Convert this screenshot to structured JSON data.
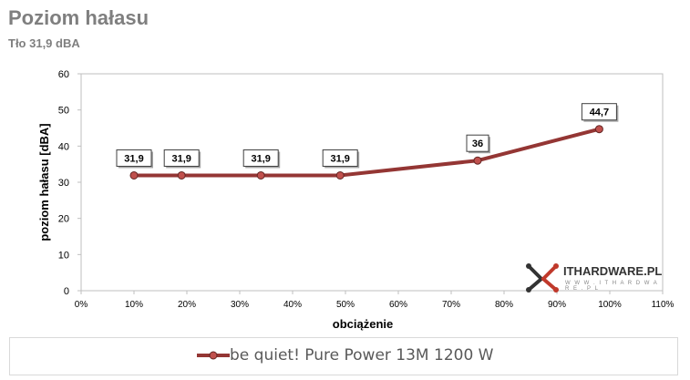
{
  "chart_data": {
    "type": "line",
    "title": "Poziom hałasu",
    "subtitle": "Tło 31,9 dBA",
    "xlabel": "obciążenie",
    "ylabel": "poziom hałasu [dBA]",
    "xlim": [
      0,
      110
    ],
    "ylim": [
      0,
      60
    ],
    "x_ticks": [
      "0%",
      "10%",
      "20%",
      "30%",
      "40%",
      "50%",
      "60%",
      "70%",
      "80%",
      "90%",
      "100%",
      "110%"
    ],
    "y_ticks": [
      "0",
      "10",
      "20",
      "30",
      "40",
      "50",
      "60"
    ],
    "grid": false,
    "legend_position": "bottom",
    "series": [
      {
        "name": "be quiet! Pure Power 13M 1200 W",
        "color": "#943634",
        "x": [
          10,
          19,
          34,
          49,
          75,
          98
        ],
        "values": [
          31.9,
          31.9,
          31.9,
          31.9,
          36,
          44.7
        ],
        "labels": [
          "31,9",
          "31,9",
          "31,9",
          "31,9",
          "36",
          "44,7"
        ]
      }
    ]
  },
  "watermark": {
    "brand": "ITHARDWARE.PL",
    "url": "W W W . I T H A R D W A R E . P L"
  }
}
